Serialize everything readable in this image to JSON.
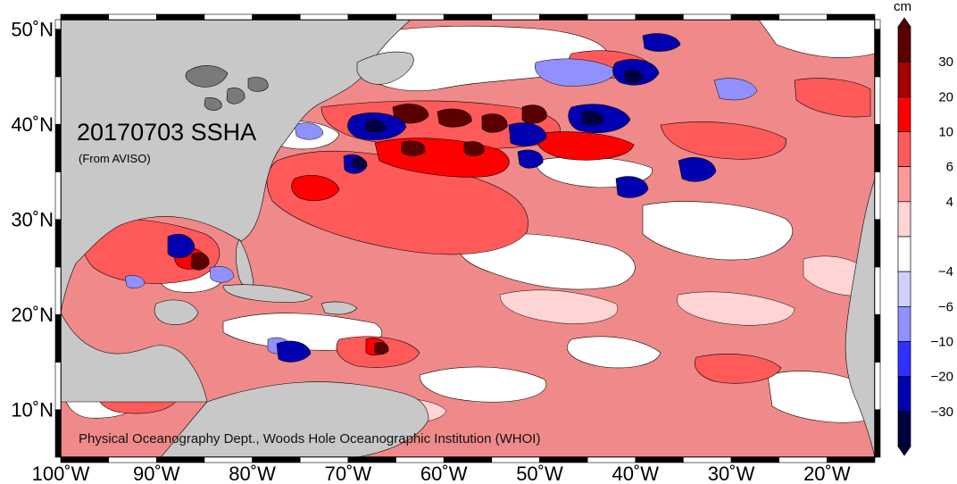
{
  "map": {
    "title": "20170703 SSHA",
    "source": "(From AVISO)",
    "credit": "Physical Oceanography Dept., Woods Hole Oceanographic Institution (WHOI)",
    "extent": {
      "lon_min": -100,
      "lon_max": -15,
      "lat_min": 5,
      "lat_max": 51
    },
    "lat_ticks": [
      {
        "value": 50,
        "label": "50˚N"
      },
      {
        "value": 40,
        "label": "40˚N"
      },
      {
        "value": 30,
        "label": "30˚N"
      },
      {
        "value": 20,
        "label": "20˚N"
      },
      {
        "value": 10,
        "label": "10˚N"
      }
    ],
    "lon_ticks": [
      {
        "value": -100,
        "label": "100˚W"
      },
      {
        "value": -90,
        "label": "90˚W"
      },
      {
        "value": -80,
        "label": "80˚W"
      },
      {
        "value": -70,
        "label": "70˚W"
      },
      {
        "value": -60,
        "label": "60˚W"
      },
      {
        "value": -50,
        "label": "50˚W"
      },
      {
        "value": -40,
        "label": "40˚W"
      },
      {
        "value": -30,
        "label": "30˚W"
      },
      {
        "value": -20,
        "label": "20˚W"
      }
    ],
    "colors": {
      "land": "#c8c8c8",
      "lakes": "#7a7a7a",
      "ocean_base": "#f08a8a"
    }
  },
  "colorbar": {
    "unit": "cm",
    "bins": [
      {
        "color": "#5a0000"
      },
      {
        "color": "#a80000"
      },
      {
        "color": "#ff0000"
      },
      {
        "color": "#ff5a5a"
      },
      {
        "color": "#ff9a9a"
      },
      {
        "color": "#ffd4d4"
      },
      {
        "color": "#ffffff"
      },
      {
        "color": "#d0d0ff"
      },
      {
        "color": "#9090ff"
      },
      {
        "color": "#3030ff"
      },
      {
        "color": "#0000b0"
      },
      {
        "color": "#000040"
      }
    ],
    "labels": [
      "30",
      "20",
      "10",
      "6",
      "4",
      "−4",
      "−6",
      "−10",
      "−20",
      "−30"
    ]
  }
}
